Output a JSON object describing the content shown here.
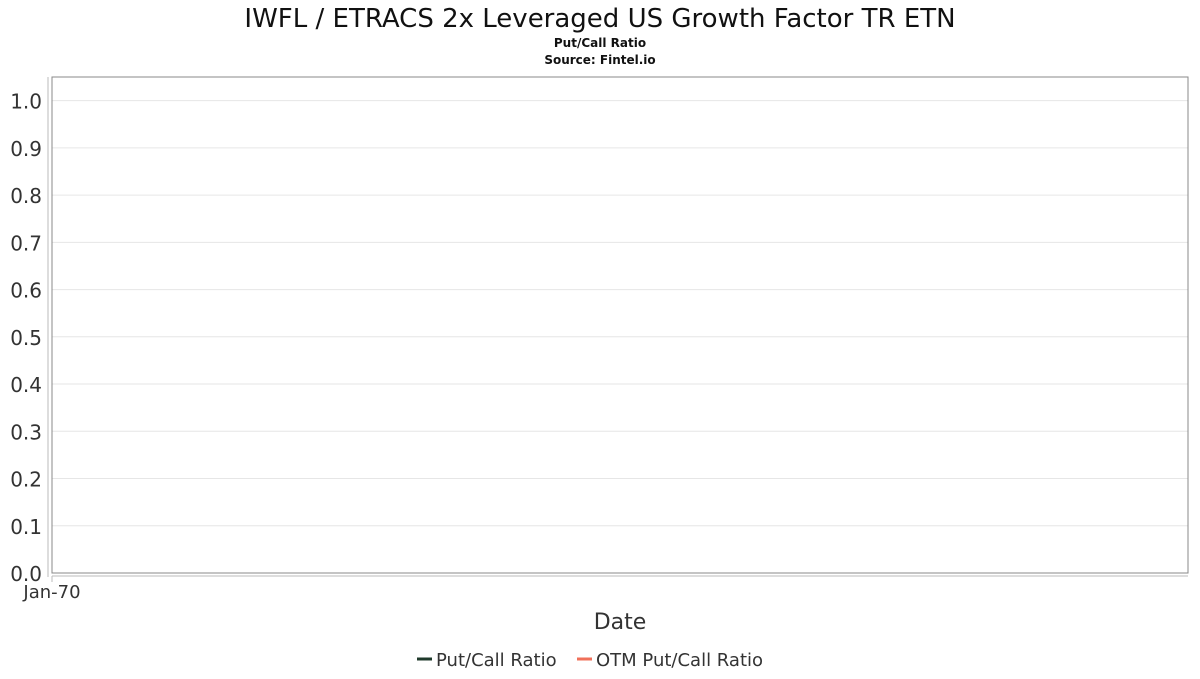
{
  "chart_data": {
    "type": "line",
    "title": "IWFL / ETRACS 2x Leveraged US Growth Factor TR ETN",
    "subtitle": "Put/Call Ratio",
    "source": "Source: Fintel.io",
    "xlabel": "Date",
    "ylabel": "",
    "x_ticks": [
      "Jan-70"
    ],
    "y_ticks": [
      "0.0",
      "0.1",
      "0.2",
      "0.3",
      "0.4",
      "0.5",
      "0.6",
      "0.7",
      "0.8",
      "0.9",
      "1.0"
    ],
    "ylim": [
      0,
      1.05
    ],
    "grid": true,
    "legend_position": "bottom",
    "series": [
      {
        "name": "Put/Call Ratio",
        "color": "#1f3a2b",
        "values": []
      },
      {
        "name": "OTM Put/Call Ratio",
        "color": "#f0705a",
        "values": []
      }
    ]
  }
}
